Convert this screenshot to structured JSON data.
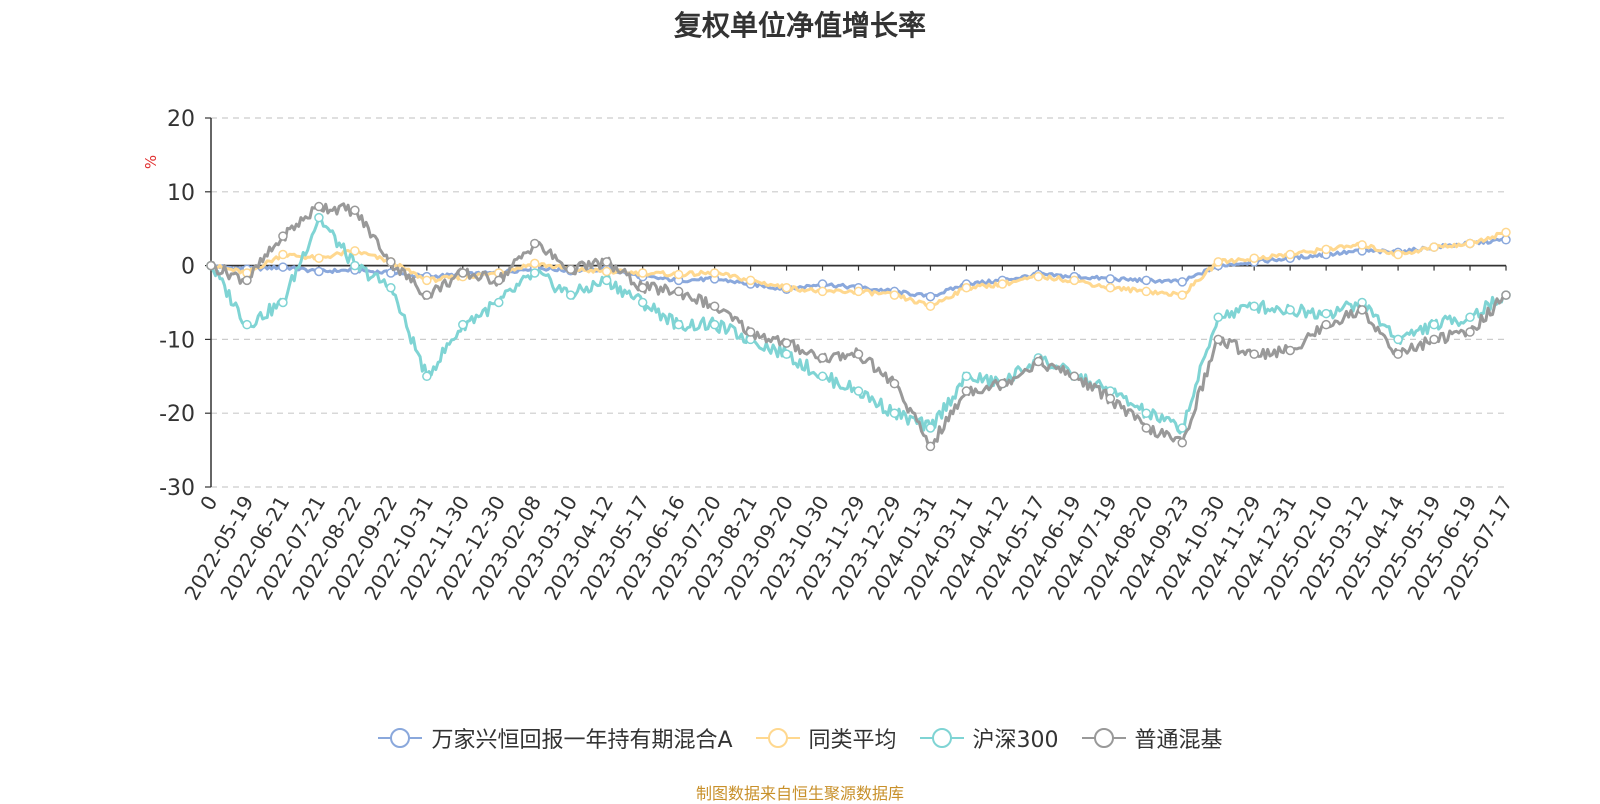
{
  "chart_data": {
    "type": "line",
    "title": "复权单位净值增长率",
    "ylabel": "%",
    "ylim": [
      -30,
      20
    ],
    "yticks": [
      20,
      10,
      0,
      -10,
      -20,
      -30
    ],
    "grid": true,
    "legend_position": "bottom",
    "source": "制图数据来自恒生聚源数据库",
    "categories": [
      "0",
      "2022-05-19",
      "2022-06-21",
      "2022-07-21",
      "2022-08-22",
      "2022-09-22",
      "2022-10-31",
      "2022-11-30",
      "2022-12-30",
      "2023-02-08",
      "2023-03-10",
      "2023-04-12",
      "2023-05-17",
      "2023-06-16",
      "2023-07-20",
      "2023-08-21",
      "2023-09-20",
      "2023-10-30",
      "2023-11-29",
      "2023-12-29",
      "2024-01-31",
      "2024-03-11",
      "2024-04-12",
      "2024-05-17",
      "2024-06-19",
      "2024-07-19",
      "2024-08-20",
      "2024-09-23",
      "2024-10-30",
      "2024-11-29",
      "2024-12-31",
      "2025-02-10",
      "2025-03-12",
      "2025-04-14",
      "2025-05-19",
      "2025-06-19",
      "2025-07-17"
    ],
    "series": [
      {
        "name": "万家兴恒回报一年持有期混合A",
        "color": "#8aa8dc",
        "values": [
          0,
          -0.5,
          -0.2,
          -0.8,
          -0.6,
          -1.0,
          -1.5,
          -1.2,
          -1.0,
          -0.3,
          -0.7,
          -0.5,
          -1.5,
          -2.0,
          -1.8,
          -2.5,
          -3.2,
          -2.5,
          -3.0,
          -3.5,
          -4.2,
          -2.5,
          -2.0,
          -1.2,
          -1.5,
          -1.8,
          -2.0,
          -2.2,
          0.0,
          0.5,
          1.0,
          1.5,
          2.0,
          1.8,
          2.5,
          3.0,
          3.5
        ]
      },
      {
        "name": "同类平均",
        "color": "#ffd88f",
        "values": [
          0,
          -1.0,
          1.5,
          1.0,
          2.0,
          0.5,
          -2.0,
          -1.5,
          -1.0,
          0.3,
          -0.5,
          -0.8,
          -1.0,
          -1.2,
          -1.0,
          -2.0,
          -3.0,
          -3.5,
          -3.5,
          -4.0,
          -5.5,
          -3.0,
          -2.5,
          -1.5,
          -2.0,
          -3.0,
          -3.5,
          -4.0,
          0.5,
          1.0,
          1.5,
          2.2,
          2.8,
          1.5,
          2.5,
          3.0,
          4.5
        ]
      },
      {
        "name": "沪深300",
        "color": "#7fd4d4",
        "values": [
          0,
          -8.0,
          -5.0,
          6.5,
          0.0,
          -3.0,
          -15.0,
          -8.0,
          -5.0,
          -1.0,
          -4.0,
          -2.0,
          -5.0,
          -8.0,
          -8.0,
          -10.0,
          -12.0,
          -15.0,
          -17.0,
          -20.0,
          -22.0,
          -15.0,
          -16.0,
          -12.5,
          -15.0,
          -17.0,
          -20.0,
          -22.0,
          -7.0,
          -5.5,
          -6.0,
          -6.5,
          -5.0,
          -10.0,
          -8.0,
          -7.0,
          -4.0
        ]
      },
      {
        "name": "普通混基",
        "color": "#999999",
        "values": [
          0,
          -2.0,
          4.0,
          8.0,
          7.5,
          0.5,
          -4.0,
          -1.0,
          -2.0,
          3.0,
          -0.5,
          0.5,
          -3.0,
          -3.5,
          -5.5,
          -9.0,
          -10.5,
          -12.5,
          -12.0,
          -16.0,
          -24.5,
          -17.0,
          -16.0,
          -13.0,
          -15.0,
          -18.0,
          -22.0,
          -24.0,
          -10.0,
          -12.0,
          -11.5,
          -8.0,
          -6.0,
          -12.0,
          -10.0,
          -9.0,
          -4.0
        ]
      }
    ]
  }
}
